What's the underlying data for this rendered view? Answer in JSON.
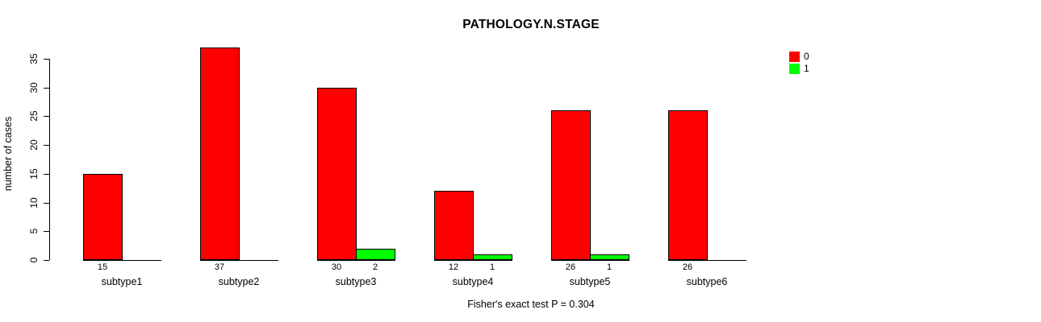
{
  "chart_data": {
    "type": "bar",
    "title": "PATHOLOGY.N.STAGE",
    "ylabel": "number of cases",
    "xlabel": "",
    "categories": [
      "subtype1",
      "subtype2",
      "subtype3",
      "subtype4",
      "subtype5",
      "subtype6"
    ],
    "series": [
      {
        "name": "0",
        "color": "#FF0000",
        "values": [
          15,
          37,
          30,
          12,
          26,
          26
        ]
      },
      {
        "name": "1",
        "color": "#00FF00",
        "values": [
          0,
          0,
          2,
          1,
          1,
          0
        ]
      }
    ],
    "yticks": [
      0,
      5,
      10,
      15,
      20,
      25,
      30,
      35
    ],
    "ylim": [
      0,
      37
    ],
    "grid": false,
    "legend_position": "top-right",
    "bar_value_labels": true,
    "annotation": "Fisher's exact test P = 0.304"
  }
}
